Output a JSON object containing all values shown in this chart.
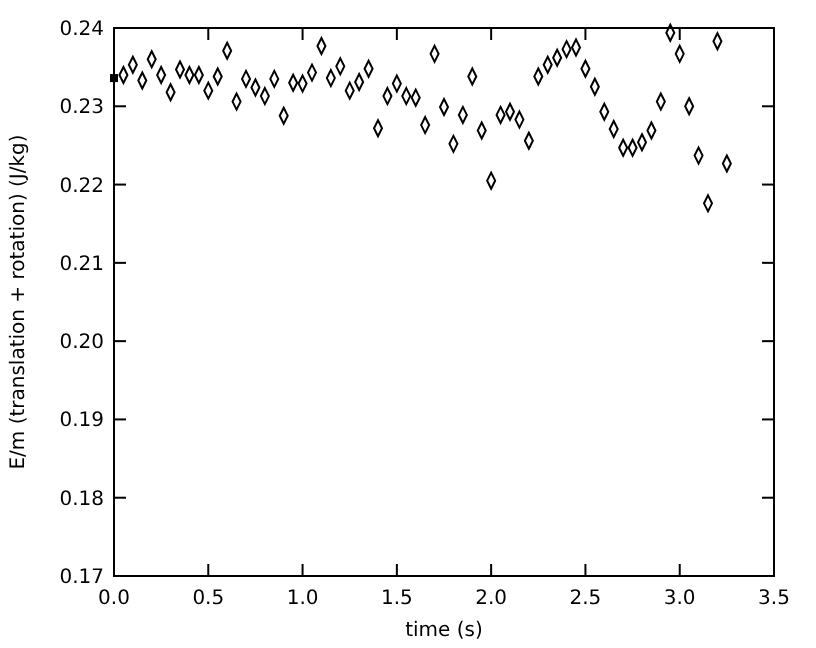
{
  "chart_data": {
    "type": "scatter",
    "xlabel": "time (s)",
    "ylabel": "E/m (translation + rotation) (J/kg)",
    "xlim": [
      0,
      3.5
    ],
    "xticks": [
      {
        "value": 0,
        "label": "0.0"
      },
      {
        "value": 0.5,
        "label": "0.5"
      },
      {
        "value": 1,
        "label": "1.0"
      },
      {
        "value": 1.5,
        "label": "1.5"
      },
      {
        "value": 2,
        "label": "2.0"
      },
      {
        "value": 2.5,
        "label": "2.5"
      },
      {
        "value": 3,
        "label": "3.0"
      },
      {
        "value": 3.5,
        "label": "3.5"
      }
    ],
    "ylim": [
      0.17,
      0.24
    ],
    "yticks": [
      {
        "value": 0.17,
        "label": "0.17"
      },
      {
        "value": 0.18,
        "label": "0.18"
      },
      {
        "value": 0.19,
        "label": "0.19"
      },
      {
        "value": 0.2,
        "label": "0.20"
      },
      {
        "value": 0.21,
        "label": "0.21"
      },
      {
        "value": 0.22,
        "label": "0.22"
      },
      {
        "value": 0.23,
        "label": "0.23"
      },
      {
        "value": 0.24,
        "label": "0.24"
      }
    ],
    "grid": false,
    "series": [
      {
        "color": "#000000",
        "marker": "square",
        "x": [
          0
        ],
        "values": [
          0.2336
        ]
      },
      {
        "color": "#000000",
        "marker": "diamond",
        "x": [
          0.05,
          0.1,
          0.15,
          0.2,
          0.25,
          0.3,
          0.35,
          0.4,
          0.45,
          0.5,
          0.55,
          0.6,
          0.65,
          0.7,
          0.75,
          0.8,
          0.85,
          0.9,
          0.95,
          1.0,
          1.05,
          1.1,
          1.15,
          1.2,
          1.25,
          1.3,
          1.35,
          1.4,
          1.45,
          1.5,
          1.55,
          1.6,
          1.65,
          1.7,
          1.75,
          1.8,
          1.85,
          1.9,
          1.95,
          2.0,
          2.05,
          2.1,
          2.15,
          2.2,
          2.25,
          2.3,
          2.35,
          2.4,
          2.45,
          2.5,
          2.55,
          2.6,
          2.65,
          2.7,
          2.75,
          2.8,
          2.85,
          2.9,
          2.95,
          3.0,
          3.05,
          3.1,
          3.15,
          3.2,
          3.25
        ],
        "values": [
          0.234,
          0.2353,
          0.2333,
          0.236,
          0.234,
          0.2318,
          0.2347,
          0.234,
          0.234,
          0.232,
          0.2338,
          0.2371,
          0.2306,
          0.2335,
          0.2324,
          0.2313,
          0.2335,
          0.2288,
          0.233,
          0.2329,
          0.2343,
          0.2377,
          0.2336,
          0.2351,
          0.232,
          0.2331,
          0.2348,
          0.2272,
          0.2313,
          0.2329,
          0.2313,
          0.2311,
          0.2276,
          0.2367,
          0.2299,
          0.2252,
          0.2289,
          0.2338,
          0.2269,
          0.2205,
          0.2289,
          0.2293,
          0.2283,
          0.2256,
          0.2338,
          0.2353,
          0.2362,
          0.2373,
          0.2375,
          0.2348,
          0.2325,
          0.2293,
          0.2271,
          0.2247,
          0.2247,
          0.2254,
          0.2269,
          0.2306,
          0.2394,
          0.2367,
          0.23,
          0.2237,
          0.2176,
          0.2383,
          0.2227
        ]
      }
    ]
  }
}
